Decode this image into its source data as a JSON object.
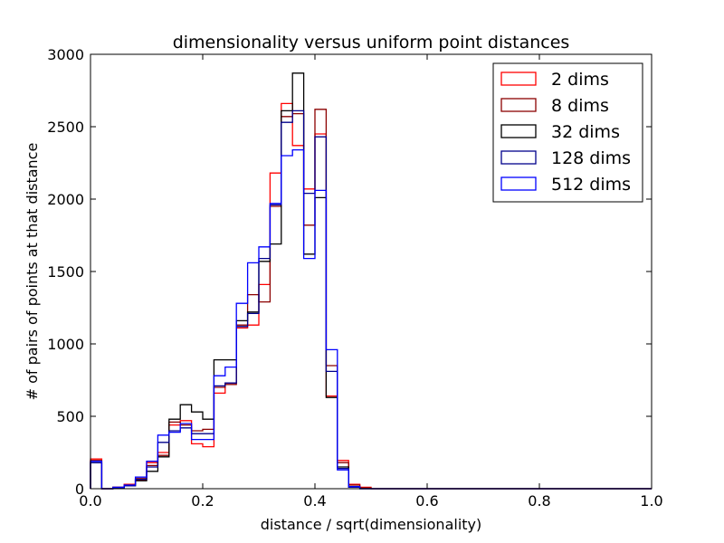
{
  "chart_data": {
    "type": "line",
    "title": "dimensionality versus uniform point distances",
    "xlabel": "distance / sqrt(dimensionality)",
    "ylabel": "# of pairs of points at that distance",
    "xlim": [
      0.0,
      1.0
    ],
    "ylim": [
      0,
      3000
    ],
    "xticks": [
      "0.0",
      "0.2",
      "0.4",
      "0.6",
      "0.8",
      "1.0"
    ],
    "yticks": [
      "0",
      "500",
      "1000",
      "1500",
      "2000",
      "2500",
      "3000"
    ],
    "legend_position": "top-right",
    "grid": false,
    "bins": [
      0.0,
      0.02,
      0.04,
      0.06,
      0.08,
      0.1,
      0.12,
      0.14,
      0.16,
      0.18,
      0.2,
      0.22,
      0.24,
      0.26,
      0.28,
      0.3,
      0.32,
      0.34,
      0.36,
      0.38,
      0.4,
      0.42,
      0.44,
      0.46,
      0.48,
      0.5,
      0.52,
      0.54,
      0.56,
      0.58,
      0.6,
      0.62,
      0.64,
      0.66,
      0.68,
      0.7,
      0.72,
      0.74,
      0.76,
      0.78,
      0.8,
      0.82,
      0.84,
      0.86,
      0.88,
      0.9,
      0.92,
      0.94,
      0.96,
      0.98
    ],
    "series": [
      {
        "name": "2 dims",
        "color": "#ff0000",
        "values": [
          205,
          0,
          10,
          30,
          60,
          180,
          250,
          440,
          470,
          310,
          290,
          660,
          730,
          1110,
          1130,
          1410,
          2180,
          2660,
          2370,
          2070,
          2450,
          640,
          195,
          30,
          10,
          0,
          0,
          0,
          0,
          0,
          0,
          0,
          0,
          0,
          0,
          0,
          0,
          0,
          0,
          0,
          0,
          0,
          0,
          0,
          0,
          0,
          0,
          0,
          0,
          0
        ]
      },
      {
        "name": "8 dims",
        "color": "#8b0000",
        "values": [
          195,
          0,
          10,
          25,
          70,
          160,
          230,
          460,
          440,
          400,
          410,
          700,
          720,
          1130,
          1340,
          1290,
          1950,
          2570,
          2590,
          1820,
          2620,
          850,
          180,
          25,
          5,
          0,
          0,
          0,
          0,
          0,
          0,
          0,
          0,
          0,
          0,
          0,
          0,
          0,
          0,
          0,
          0,
          0,
          0,
          0,
          0,
          0,
          0,
          0,
          0,
          0
        ]
      },
      {
        "name": "32 dims",
        "color": "#000000",
        "values": [
          180,
          0,
          5,
          20,
          55,
          120,
          220,
          480,
          580,
          530,
          480,
          890,
          890,
          1160,
          1220,
          1570,
          1690,
          2610,
          2870,
          1620,
          2010,
          630,
          150,
          10,
          0,
          0,
          0,
          0,
          0,
          0,
          0,
          0,
          0,
          0,
          0,
          0,
          0,
          0,
          0,
          0,
          0,
          0,
          0,
          0,
          0,
          0,
          0,
          0,
          0,
          0
        ]
      },
      {
        "name": "128 dims",
        "color": "#00008b",
        "values": [
          180,
          0,
          5,
          20,
          65,
          150,
          320,
          400,
          420,
          380,
          380,
          710,
          730,
          1120,
          1210,
          1590,
          1960,
          2530,
          2610,
          2040,
          2430,
          810,
          140,
          10,
          0,
          0,
          0,
          0,
          0,
          0,
          0,
          0,
          0,
          0,
          0,
          0,
          0,
          0,
          0,
          0,
          0,
          0,
          0,
          0,
          0,
          0,
          0,
          0,
          0,
          0
        ]
      },
      {
        "name": "512 dims",
        "color": "#0000ff",
        "values": [
          190,
          0,
          10,
          25,
          80,
          190,
          370,
          390,
          450,
          340,
          340,
          780,
          840,
          1280,
          1560,
          1670,
          1970,
          2300,
          2340,
          1590,
          2060,
          960,
          130,
          15,
          0,
          0,
          0,
          0,
          0,
          0,
          0,
          0,
          0,
          0,
          0,
          0,
          0,
          0,
          0,
          0,
          0,
          0,
          0,
          0,
          0,
          0,
          0,
          0,
          0,
          0
        ]
      }
    ]
  }
}
